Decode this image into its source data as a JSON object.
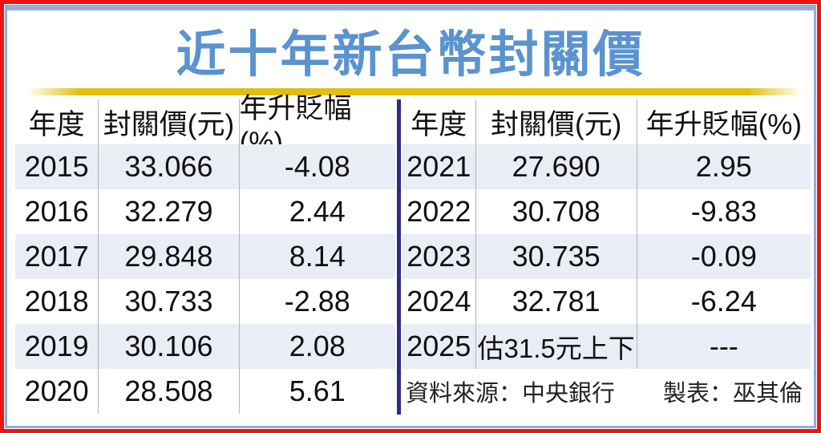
{
  "title": "近十年新台幣封關價",
  "colors": {
    "outer_border": "#ee1414",
    "inner_border": "#8fafd9",
    "title_text": "#5b93cf",
    "gold_bar": "#e0c00f",
    "row_stripe": "#eaedf5",
    "center_divider": "#2b2e86",
    "column_divider": "#b5b5b5",
    "body_text": "#101010"
  },
  "left_table": {
    "headers": [
      "年度",
      "封關價(元)",
      "年升貶幅(%)"
    ],
    "rows": [
      {
        "year": "2015",
        "price": "33.066",
        "change": "-4.08"
      },
      {
        "year": "2016",
        "price": "32.279",
        "change": "2.44"
      },
      {
        "year": "2017",
        "price": "29.848",
        "change": "8.14"
      },
      {
        "year": "2018",
        "price": "30.733",
        "change": "-2.88"
      },
      {
        "year": "2019",
        "price": "30.106",
        "change": "2.08"
      },
      {
        "year": "2020",
        "price": "28.508",
        "change": "5.61"
      }
    ]
  },
  "right_table": {
    "headers": [
      "年度",
      "封關價(元)",
      "年升貶幅(%)"
    ],
    "rows": [
      {
        "year": "2021",
        "price": "27.690",
        "change": "2.95"
      },
      {
        "year": "2022",
        "price": "30.708",
        "change": "-9.83"
      },
      {
        "year": "2023",
        "price": "30.735",
        "change": "-0.09"
      },
      {
        "year": "2024",
        "price": "32.781",
        "change": "-6.24"
      },
      {
        "year": "2025",
        "price": "估31.5元上下",
        "change": "---"
      }
    ],
    "source": "資料來源：中央銀行",
    "credit": "製表：巫其倫"
  },
  "chart_data": {
    "type": "table",
    "title": "近十年新台幣封關價",
    "columns": [
      "年度",
      "封關價(元)",
      "年升貶幅(%)"
    ],
    "rows": [
      [
        "2015",
        "33.066",
        "-4.08"
      ],
      [
        "2016",
        "32.279",
        "2.44"
      ],
      [
        "2017",
        "29.848",
        "8.14"
      ],
      [
        "2018",
        "30.733",
        "-2.88"
      ],
      [
        "2019",
        "30.106",
        "2.08"
      ],
      [
        "2020",
        "28.508",
        "5.61"
      ],
      [
        "2021",
        "27.690",
        "2.95"
      ],
      [
        "2022",
        "30.708",
        "-9.83"
      ],
      [
        "2023",
        "30.735",
        "-0.09"
      ],
      [
        "2024",
        "32.781",
        "-6.24"
      ],
      [
        "2025",
        "估31.5元上下",
        "---"
      ]
    ],
    "source": "資料來源：中央銀行",
    "credit": "製表：巫其倫"
  }
}
